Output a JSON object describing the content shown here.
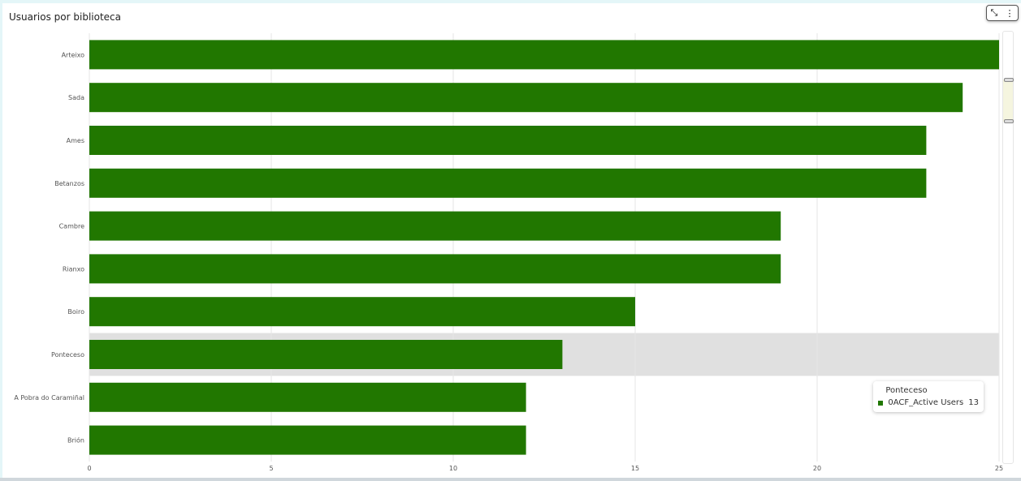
{
  "header": {
    "title": "Usuarios por biblioteca",
    "collapse_icon": "collapse-arrows-icon",
    "menu_icon": "more-vertical-icon"
  },
  "chart_data": {
    "type": "bar",
    "orientation": "horizontal",
    "title": "Usuarios por biblioteca",
    "categories": [
      "Arteixo",
      "Sada",
      "Ames",
      "Betanzos",
      "Cambre",
      "Rianxo",
      "Boiro",
      "Ponteceso",
      "A Pobra do Caramiñal",
      "Brión"
    ],
    "series": [
      {
        "name": "0ACF_Active Users",
        "values": [
          25,
          24,
          23,
          23,
          19,
          19,
          15,
          13,
          12,
          12
        ],
        "color": "#217700"
      }
    ],
    "xlim": [
      0,
      25
    ],
    "xticks": [
      "0",
      "5",
      "10",
      "15",
      "20",
      "25"
    ],
    "grid": true,
    "highlighted": "Ponteceso"
  },
  "tooltip": {
    "title": "Ponteceso",
    "series": "0ACF_Active Users",
    "value": "13"
  }
}
